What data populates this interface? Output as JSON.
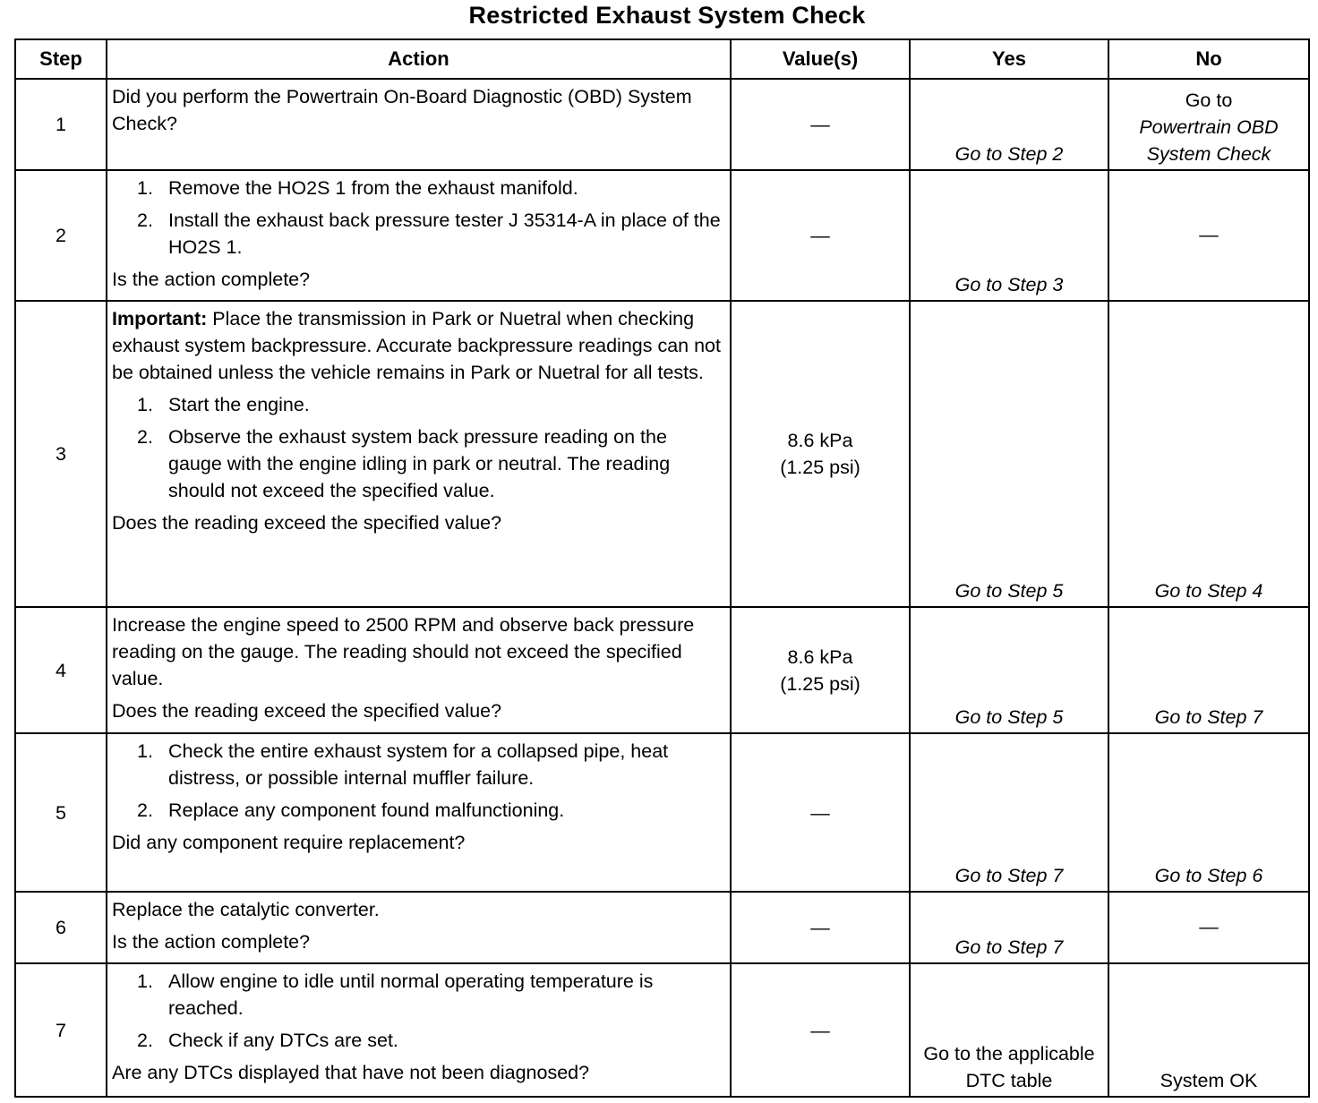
{
  "title": "Restricted Exhaust System Check",
  "headers": [
    "Step",
    "Action",
    "Value(s)",
    "Yes",
    "No"
  ],
  "rows": [
    {
      "step": "1",
      "action": [
        {
          "type": "p",
          "text": "Did you perform the Powertrain On-Board Diagnostic (OBD) System Check?"
        }
      ],
      "value": [
        "—"
      ],
      "yes": [
        {
          "text": "Go to Step 2",
          "italic": true
        }
      ],
      "no": [
        {
          "text": "Go to",
          "italic": false
        },
        {
          "text": "Powertrain OBD System Check",
          "italic": true
        }
      ]
    },
    {
      "step": "2",
      "action": [
        {
          "type": "li",
          "num": "1.",
          "text": "Remove the HO2S 1 from the exhaust manifold."
        },
        {
          "type": "li",
          "num": "2.",
          "text": "Install the exhaust back pressure tester J 35314-A in place of the HO2S 1."
        },
        {
          "type": "p",
          "text": "Is the action complete?"
        }
      ],
      "value": [
        "—"
      ],
      "yes": [
        {
          "text": "Go to Step 3",
          "italic": true
        }
      ],
      "no": [
        {
          "text": "—",
          "italic": false,
          "dash": true
        }
      ]
    },
    {
      "step": "3",
      "action": [
        {
          "type": "p",
          "bold": "Important:",
          "text": " Place the transmission in Park or Nuetral when checking exhaust system backpressure. Accurate backpressure readings can not be obtained unless the vehicle remains in Park or Nuetral for all tests."
        },
        {
          "type": "li",
          "num": "1.",
          "text": "Start the engine."
        },
        {
          "type": "li",
          "num": "2.",
          "text": "Observe the exhaust system back pressure reading on the gauge with the engine idling in park or neutral. The reading should not exceed the specified value."
        },
        {
          "type": "p",
          "text": "Does the reading exceed the specified value?"
        }
      ],
      "value": [
        "8.6 kPa",
        "(1.25 psi)"
      ],
      "yes": [
        {
          "text": "Go to Step 5",
          "italic": true
        }
      ],
      "no": [
        {
          "text": "Go to Step 4",
          "italic": true
        }
      ]
    },
    {
      "step": "4",
      "action": [
        {
          "type": "p",
          "text": "Increase the engine speed to 2500 RPM and observe back pressure reading on the gauge. The reading should not exceed the specified value."
        },
        {
          "type": "p",
          "text": "Does the reading exceed the specified value?"
        }
      ],
      "value": [
        "8.6 kPa",
        "(1.25 psi)"
      ],
      "yes": [
        {
          "text": "Go to Step 5",
          "italic": true
        }
      ],
      "no": [
        {
          "text": "Go to Step 7",
          "italic": true
        }
      ]
    },
    {
      "step": "5",
      "action": [
        {
          "type": "li",
          "num": "1.",
          "text": "Check the entire exhaust system for a collapsed pipe, heat distress, or possible internal muffler failure."
        },
        {
          "type": "li",
          "num": "2.",
          "text": "Replace any component found malfunctioning."
        },
        {
          "type": "p",
          "text": "Did any component require replacement?"
        }
      ],
      "value": [
        "—"
      ],
      "yes": [
        {
          "text": "Go to Step 7",
          "italic": true
        }
      ],
      "no": [
        {
          "text": "Go to Step 6",
          "italic": true
        }
      ]
    },
    {
      "step": "6",
      "action": [
        {
          "type": "p",
          "text": "Replace the catalytic converter."
        },
        {
          "type": "p",
          "text": "Is the action complete?"
        }
      ],
      "value": [
        "—"
      ],
      "yes": [
        {
          "text": "Go to Step 7",
          "italic": true
        }
      ],
      "no": [
        {
          "text": "—",
          "italic": false,
          "dash": true
        }
      ]
    },
    {
      "step": "7",
      "action": [
        {
          "type": "li",
          "num": "1.",
          "text": "Allow engine to idle until normal operating temperature is reached."
        },
        {
          "type": "li",
          "num": "2.",
          "text": "Check if any DTCs are set."
        },
        {
          "type": "p",
          "text": "Are any DTCs displayed that have not been diagnosed?"
        }
      ],
      "value": [
        "—"
      ],
      "yes": [
        {
          "text": "Go to the applicable DTC table",
          "italic": false
        }
      ],
      "no": [
        {
          "text": "System OK",
          "italic": false
        }
      ]
    }
  ]
}
